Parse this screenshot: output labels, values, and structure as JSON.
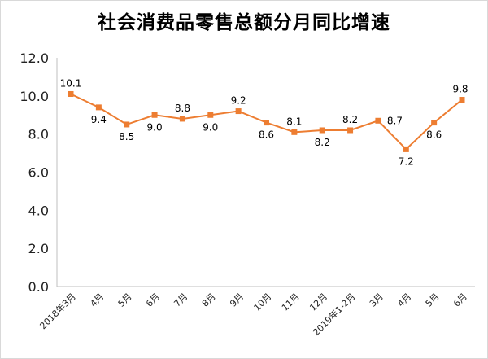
{
  "chart_data": {
    "type": "line",
    "title": "社会消费品零售总额分月同比增速",
    "categories": [
      "2018年3月",
      "4月",
      "5月",
      "6月",
      "7月",
      "8月",
      "9月",
      "10月",
      "11月",
      "12月",
      "2019年1-2月",
      "3月",
      "4月",
      "5月",
      "6月"
    ],
    "series": [
      {
        "values": [
          10.1,
          9.4,
          8.5,
          9.0,
          8.8,
          9.0,
          9.2,
          8.6,
          8.1,
          8.2,
          8.2,
          8.7,
          7.2,
          8.6,
          9.8
        ],
        "color": "#ED7D31",
        "data_labels": [
          "10.1",
          "9.4",
          "8.5",
          "9.0",
          "8.8",
          "9.0",
          "9.2",
          "8.6",
          "8.1",
          "8.2",
          "8.2",
          "8.7",
          "7.2",
          "8.6",
          "9.8"
        ]
      }
    ],
    "y_ticks": [
      "0.0",
      "2.0",
      "4.0",
      "6.0",
      "8.0",
      "10.0",
      "12.0"
    ],
    "ylim": [
      0,
      12
    ],
    "grid": false,
    "legend": "none",
    "marker": "square"
  }
}
